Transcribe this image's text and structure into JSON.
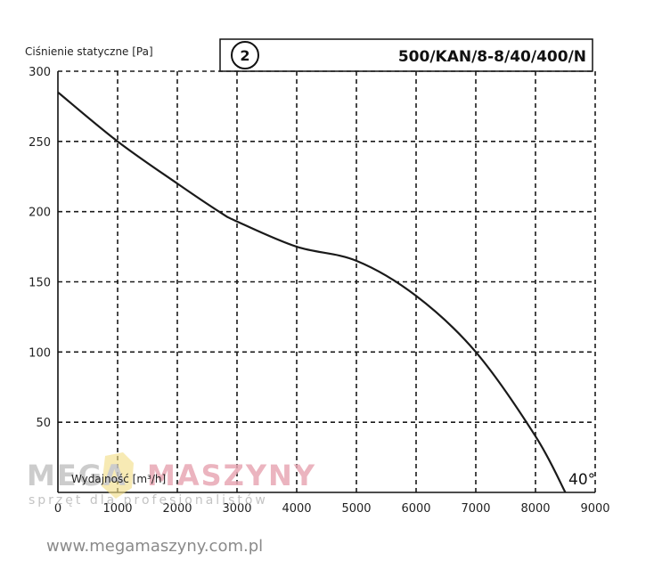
{
  "chart_data": {
    "type": "line",
    "ylabel": "Ciśnienie statyczne [Pa]",
    "xlabel": "Wydajność [m³/h]",
    "model": "500/KAN/8-8/40/400/N",
    "badge": "2",
    "curve_label": "40°",
    "xlim": [
      0,
      9000
    ],
    "ylim": [
      0,
      300
    ],
    "x_ticks": [
      "0",
      "1000",
      "2000",
      "3000",
      "4000",
      "5000",
      "6000",
      "7000",
      "8000",
      "9000"
    ],
    "y_ticks": [
      "50",
      "100",
      "150",
      "200",
      "250",
      "300"
    ],
    "grid": true,
    "series": [
      {
        "x": [
          0,
          1000,
          2000,
          2700,
          3000,
          4000,
          5000,
          6000,
          7000,
          8000,
          8500
        ],
        "values": [
          285,
          250,
          220,
          200,
          193,
          175,
          165,
          140,
          100,
          40,
          0
        ]
      }
    ]
  },
  "watermark": {
    "brand_left": "MEGA",
    "brand_right": "MASZYNY",
    "tagline": "sprzęt dla profesjonalistów",
    "url": "www.megamaszyny.com.pl"
  },
  "colors": {
    "curve": "#1a1a1a",
    "grid": "#1a1a1a",
    "watermark_gray": "#c4c4c4",
    "watermark_pink": "#e8a8b4",
    "logo_yellow": "#f3df8a"
  }
}
